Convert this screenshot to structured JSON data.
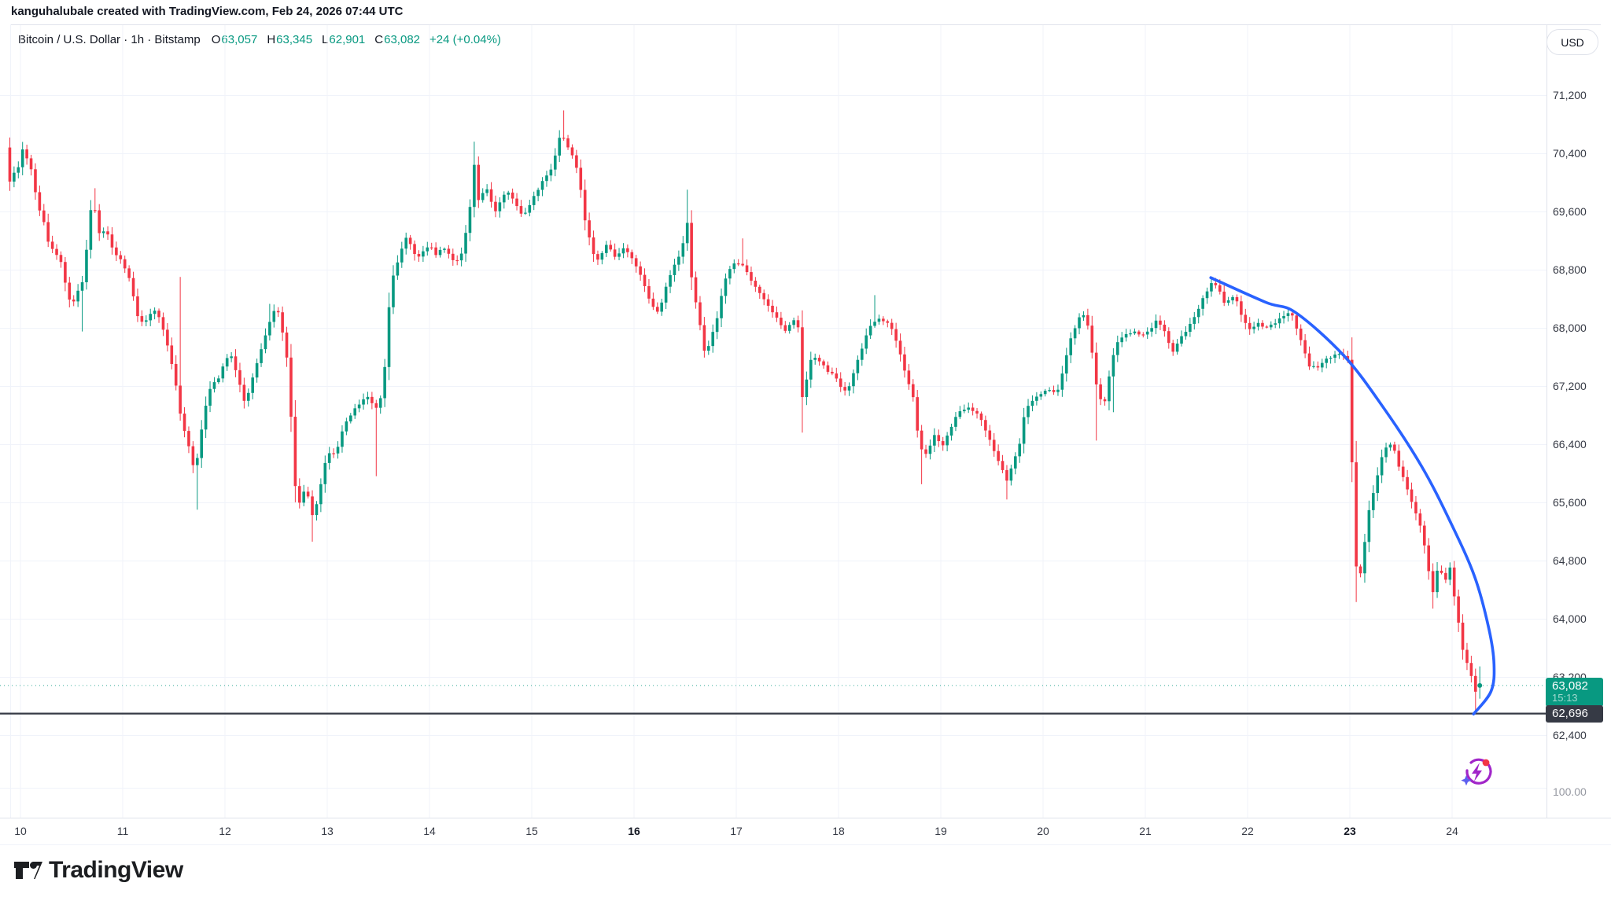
{
  "attribution": {
    "text": "kanguhalubale created with TradingView.com, Feb 24, 2026 07:44 UTC"
  },
  "header": {
    "symbol_title": "Bitcoin / U.S. Dollar · 1h · Bitstamp",
    "ohlc": {
      "open_label": "O",
      "open_value": "63,057",
      "high_label": "H",
      "high_value": "63,345",
      "low_label": "L",
      "low_value": "62,901",
      "close_label": "C",
      "close_value": "63,082",
      "change": "+24 (+0.04%)"
    },
    "currency_button": "USD"
  },
  "price_scale": {
    "current_price_label": "63,082",
    "countdown": "15:13",
    "level_label": "62,696",
    "secondary_label": "100.00"
  },
  "footer": {
    "logo_text": "TradingView"
  },
  "colors": {
    "up": "#089981",
    "down": "#F23645",
    "accent_blue": "#2962FF",
    "level_line": "#363A45",
    "grid": "#F0F3FA",
    "axis_border": "#E0E3EB",
    "text": "#131722",
    "muted": "#9598A1",
    "label_green_bg": "#089981",
    "label_dark_bg": "#363A45"
  },
  "icons": {
    "spark_icon": "lightning-refresh-spark",
    "logo_icon": "tradingview-mark"
  },
  "chart_data": {
    "type": "candlestick",
    "symbol": "Bitcoin / U.S. Dollar",
    "exchange": "Bitstamp",
    "interval": "1h",
    "title": "Bitcoin / U.S. Dollar · 1h · Bitstamp",
    "grid": true,
    "legend_position": "top-left",
    "y_axis_side": "right",
    "y_ticks": [
      {
        "label": "71,200",
        "value": 71200
      },
      {
        "label": "70,400",
        "value": 70400
      },
      {
        "label": "69,600",
        "value": 69600
      },
      {
        "label": "68,800",
        "value": 68800
      },
      {
        "label": "68,000",
        "value": 68000
      },
      {
        "label": "67,200",
        "value": 67200
      },
      {
        "label": "66,400",
        "value": 66400
      },
      {
        "label": "65,600",
        "value": 65600
      },
      {
        "label": "64,800",
        "value": 64800
      },
      {
        "label": "64,000",
        "value": 64000
      },
      {
        "label": "63,200",
        "value": 63200
      },
      {
        "label": "62,400",
        "value": 62400
      }
    ],
    "x_ticks": [
      {
        "label": "10",
        "day": 10,
        "bold": false
      },
      {
        "label": "11",
        "day": 11,
        "bold": false
      },
      {
        "label": "12",
        "day": 12,
        "bold": false
      },
      {
        "label": "13",
        "day": 13,
        "bold": false
      },
      {
        "label": "14",
        "day": 14,
        "bold": false
      },
      {
        "label": "15",
        "day": 15,
        "bold": false
      },
      {
        "label": "16",
        "day": 16,
        "bold": true
      },
      {
        "label": "17",
        "day": 17,
        "bold": false
      },
      {
        "label": "18",
        "day": 18,
        "bold": false
      },
      {
        "label": "19",
        "day": 19,
        "bold": false
      },
      {
        "label": "20",
        "day": 20,
        "bold": false
      },
      {
        "label": "21",
        "day": 21,
        "bold": false
      },
      {
        "label": "22",
        "day": 22,
        "bold": false
      },
      {
        "label": "23",
        "day": 23,
        "bold": true
      },
      {
        "label": "24",
        "day": 24,
        "bold": false
      }
    ],
    "visible_range_days": {
      "start": 9.875,
      "end": 24.3
    },
    "last": {
      "open": 63057,
      "high": 63345,
      "low": 62901,
      "close": 63082,
      "change_points": 24,
      "change_percent": 0.04
    },
    "levels": {
      "current_price": 63082,
      "horizontal_line": 62696
    },
    "curve_annotation": [
      [
        21.64,
        68690
      ],
      [
        22.18,
        68350
      ],
      [
        22.47,
        68210
      ],
      [
        22.94,
        67620
      ],
      [
        23.32,
        66920
      ],
      [
        23.7,
        66100
      ],
      [
        23.98,
        65340
      ],
      [
        24.22,
        64580
      ],
      [
        24.36,
        63860
      ],
      [
        24.41,
        63370
      ],
      [
        24.38,
        63000
      ],
      [
        24.21,
        62690
      ]
    ],
    "waypoints": [
      [
        9.875,
        70480
      ],
      [
        9.917,
        70000
      ],
      [
        9.96,
        70150
      ],
      [
        10.0,
        70200
      ],
      [
        10.04,
        70460
      ],
      [
        10.08,
        70350
      ],
      [
        10.13,
        70150
      ],
      [
        10.17,
        69850
      ],
      [
        10.21,
        69600
      ],
      [
        10.25,
        69450
      ],
      [
        10.29,
        69200
      ],
      [
        10.33,
        69080
      ],
      [
        10.38,
        69000
      ],
      [
        10.42,
        68900
      ],
      [
        10.46,
        68600
      ],
      [
        10.5,
        68400
      ],
      [
        10.54,
        68350
      ],
      [
        10.58,
        68500
      ],
      [
        10.63,
        68650
      ],
      [
        10.67,
        69100
      ],
      [
        10.71,
        69650
      ],
      [
        10.73,
        69880
      ],
      [
        10.77,
        69350
      ],
      [
        10.81,
        69250
      ],
      [
        10.85,
        69400
      ],
      [
        10.9,
        69150
      ],
      [
        10.96,
        69000
      ],
      [
        11.02,
        68900
      ],
      [
        11.08,
        68700
      ],
      [
        11.13,
        68400
      ],
      [
        11.17,
        68150
      ],
      [
        11.22,
        68050
      ],
      [
        11.27,
        68150
      ],
      [
        11.32,
        68250
      ],
      [
        11.38,
        68150
      ],
      [
        11.43,
        67900
      ],
      [
        11.48,
        67650
      ],
      [
        11.53,
        67300
      ],
      [
        11.58,
        66850
      ],
      [
        11.63,
        66550
      ],
      [
        11.68,
        66300
      ],
      [
        11.72,
        66050
      ],
      [
        11.76,
        66250
      ],
      [
        11.8,
        66700
      ],
      [
        11.85,
        67050
      ],
      [
        11.9,
        67250
      ],
      [
        11.96,
        67300
      ],
      [
        12.02,
        67550
      ],
      [
        12.07,
        67650
      ],
      [
        12.12,
        67450
      ],
      [
        12.17,
        67200
      ],
      [
        12.21,
        66980
      ],
      [
        12.26,
        67150
      ],
      [
        12.31,
        67400
      ],
      [
        12.36,
        67650
      ],
      [
        12.42,
        67900
      ],
      [
        12.47,
        68150
      ],
      [
        12.52,
        68280
      ],
      [
        12.56,
        68150
      ],
      [
        12.6,
        67800
      ],
      [
        12.64,
        67450
      ],
      [
        12.67,
        66700
      ],
      [
        12.7,
        65900
      ],
      [
        12.74,
        65550
      ],
      [
        12.78,
        65700
      ],
      [
        12.81,
        65850
      ],
      [
        12.85,
        65550
      ],
      [
        12.88,
        65400
      ],
      [
        12.92,
        65600
      ],
      [
        12.96,
        65850
      ],
      [
        13.0,
        66150
      ],
      [
        13.05,
        66300
      ],
      [
        13.1,
        66250
      ],
      [
        13.15,
        66500
      ],
      [
        13.2,
        66700
      ],
      [
        13.25,
        66800
      ],
      [
        13.3,
        66900
      ],
      [
        13.36,
        67000
      ],
      [
        13.42,
        67050
      ],
      [
        13.47,
        66950
      ],
      [
        13.52,
        66850
      ],
      [
        13.56,
        67200
      ],
      [
        13.6,
        67650
      ],
      [
        13.64,
        68650
      ],
      [
        13.69,
        68800
      ],
      [
        13.74,
        69050
      ],
      [
        13.79,
        69250
      ],
      [
        13.85,
        69100
      ],
      [
        13.9,
        68950
      ],
      [
        13.96,
        69050
      ],
      [
        14.02,
        69150
      ],
      [
        14.08,
        69000
      ],
      [
        14.14,
        69100
      ],
      [
        14.2,
        69050
      ],
      [
        14.26,
        68900
      ],
      [
        14.32,
        68950
      ],
      [
        14.37,
        69250
      ],
      [
        14.42,
        69700
      ],
      [
        14.45,
        70450
      ],
      [
        14.48,
        69700
      ],
      [
        14.52,
        69800
      ],
      [
        14.57,
        69950
      ],
      [
        14.62,
        69750
      ],
      [
        14.67,
        69600
      ],
      [
        14.72,
        69750
      ],
      [
        14.77,
        69900
      ],
      [
        14.82,
        69800
      ],
      [
        14.87,
        69700
      ],
      [
        14.92,
        69550
      ],
      [
        14.97,
        69600
      ],
      [
        15.02,
        69750
      ],
      [
        15.08,
        69900
      ],
      [
        15.14,
        70050
      ],
      [
        15.2,
        70150
      ],
      [
        15.26,
        70400
      ],
      [
        15.31,
        70750
      ],
      [
        15.35,
        70500
      ],
      [
        15.4,
        70450
      ],
      [
        15.45,
        70250
      ],
      [
        15.5,
        69900
      ],
      [
        15.55,
        69400
      ],
      [
        15.6,
        69150
      ],
      [
        15.65,
        68900
      ],
      [
        15.7,
        69000
      ],
      [
        15.75,
        69150
      ],
      [
        15.8,
        69050
      ],
      [
        15.85,
        68950
      ],
      [
        15.9,
        69100
      ],
      [
        15.96,
        69050
      ],
      [
        16.02,
        68900
      ],
      [
        16.08,
        68750
      ],
      [
        16.14,
        68500
      ],
      [
        16.2,
        68300
      ],
      [
        16.26,
        68200
      ],
      [
        16.32,
        68500
      ],
      [
        16.38,
        68750
      ],
      [
        16.44,
        68950
      ],
      [
        16.49,
        69000
      ],
      [
        16.53,
        69700
      ],
      [
        16.57,
        68800
      ],
      [
        16.62,
        68400
      ],
      [
        16.67,
        68000
      ],
      [
        16.72,
        67600
      ],
      [
        16.77,
        67850
      ],
      [
        16.82,
        68050
      ],
      [
        16.87,
        68400
      ],
      [
        16.92,
        68700
      ],
      [
        16.97,
        68850
      ],
      [
        17.03,
        68900
      ],
      [
        17.09,
        68850
      ],
      [
        17.15,
        68700
      ],
      [
        17.21,
        68550
      ],
      [
        17.27,
        68450
      ],
      [
        17.33,
        68300
      ],
      [
        17.39,
        68200
      ],
      [
        17.45,
        68050
      ],
      [
        17.51,
        67950
      ],
      [
        17.57,
        68100
      ],
      [
        17.62,
        68150
      ],
      [
        17.66,
        67000
      ],
      [
        17.7,
        67250
      ],
      [
        17.75,
        67550
      ],
      [
        17.8,
        67600
      ],
      [
        17.86,
        67500
      ],
      [
        17.92,
        67400
      ],
      [
        17.98,
        67350
      ],
      [
        18.04,
        67200
      ],
      [
        18.1,
        67100
      ],
      [
        18.16,
        67350
      ],
      [
        18.22,
        67600
      ],
      [
        18.28,
        67850
      ],
      [
        18.34,
        68050
      ],
      [
        18.4,
        68120
      ],
      [
        18.46,
        68100
      ],
      [
        18.52,
        68050
      ],
      [
        18.58,
        67850
      ],
      [
        18.64,
        67550
      ],
      [
        18.7,
        67250
      ],
      [
        18.74,
        67150
      ],
      [
        18.78,
        66700
      ],
      [
        18.82,
        66350
      ],
      [
        18.87,
        66250
      ],
      [
        18.92,
        66400
      ],
      [
        18.97,
        66550
      ],
      [
        19.03,
        66350
      ],
      [
        19.08,
        66500
      ],
      [
        19.14,
        66700
      ],
      [
        19.2,
        66850
      ],
      [
        19.28,
        66900
      ],
      [
        19.36,
        66850
      ],
      [
        19.43,
        66700
      ],
      [
        19.5,
        66450
      ],
      [
        19.56,
        66250
      ],
      [
        19.62,
        66050
      ],
      [
        19.67,
        65900
      ],
      [
        19.73,
        66150
      ],
      [
        19.79,
        66400
      ],
      [
        19.85,
        66900
      ],
      [
        19.92,
        67000
      ],
      [
        20.0,
        67100
      ],
      [
        20.08,
        67150
      ],
      [
        20.16,
        67100
      ],
      [
        20.22,
        67450
      ],
      [
        20.3,
        67900
      ],
      [
        20.38,
        68150
      ],
      [
        20.44,
        68200
      ],
      [
        20.5,
        67650
      ],
      [
        20.56,
        67050
      ],
      [
        20.62,
        66950
      ],
      [
        20.68,
        67450
      ],
      [
        20.74,
        67800
      ],
      [
        20.82,
        67900
      ],
      [
        20.9,
        67950
      ],
      [
        20.98,
        67900
      ],
      [
        21.06,
        67950
      ],
      [
        21.12,
        68100
      ],
      [
        21.2,
        68000
      ],
      [
        21.28,
        67650
      ],
      [
        21.36,
        67850
      ],
      [
        21.44,
        68000
      ],
      [
        21.52,
        68200
      ],
      [
        21.6,
        68450
      ],
      [
        21.67,
        68620
      ],
      [
        21.74,
        68550
      ],
      [
        21.8,
        68300
      ],
      [
        21.86,
        68450
      ],
      [
        21.92,
        68350
      ],
      [
        21.98,
        68100
      ],
      [
        22.04,
        67980
      ],
      [
        22.12,
        68060
      ],
      [
        22.2,
        68000
      ],
      [
        22.28,
        68060
      ],
      [
        22.36,
        68150
      ],
      [
        22.44,
        68230
      ],
      [
        22.5,
        68000
      ],
      [
        22.56,
        67750
      ],
      [
        22.62,
        67480
      ],
      [
        22.7,
        67450
      ],
      [
        22.78,
        67560
      ],
      [
        22.86,
        67620
      ],
      [
        22.94,
        67650
      ],
      [
        23.0,
        67550
      ],
      [
        23.03,
        66700
      ],
      [
        23.07,
        64850
      ],
      [
        23.11,
        64450
      ],
      [
        23.15,
        64900
      ],
      [
        23.21,
        65500
      ],
      [
        23.27,
        65850
      ],
      [
        23.33,
        66200
      ],
      [
        23.39,
        66420
      ],
      [
        23.45,
        66350
      ],
      [
        23.51,
        66050
      ],
      [
        23.58,
        65800
      ],
      [
        23.65,
        65500
      ],
      [
        23.72,
        65250
      ],
      [
        23.78,
        64750
      ],
      [
        23.83,
        64350
      ],
      [
        23.89,
        64750
      ],
      [
        23.95,
        64500
      ],
      [
        24.0,
        64700
      ],
      [
        24.06,
        64150
      ],
      [
        24.12,
        63600
      ],
      [
        24.17,
        63380
      ],
      [
        24.22,
        63150
      ],
      [
        24.26,
        62960
      ],
      [
        24.2917,
        63082
      ]
    ],
    "wick_events": [
      [
        9.9,
        70590,
        "high"
      ],
      [
        10.62,
        67950,
        "low"
      ],
      [
        10.73,
        69920,
        "high"
      ],
      [
        11.58,
        68700,
        "high"
      ],
      [
        11.73,
        65500,
        "low"
      ],
      [
        12.47,
        68330,
        "high"
      ],
      [
        12.88,
        65060,
        "low"
      ],
      [
        13.52,
        65960,
        "low"
      ],
      [
        14.45,
        70560,
        "high"
      ],
      [
        15.33,
        70990,
        "high"
      ],
      [
        16.53,
        69900,
        "high"
      ],
      [
        17.1,
        69230,
        "high"
      ],
      [
        17.66,
        66560,
        "low"
      ],
      [
        18.36,
        68450,
        "high"
      ],
      [
        18.82,
        65850,
        "low"
      ],
      [
        19.66,
        65640,
        "low"
      ],
      [
        20.56,
        66450,
        "low"
      ],
      [
        20.72,
        66840,
        "low"
      ],
      [
        21.67,
        68700,
        "high"
      ],
      [
        23.09,
        64230,
        "low"
      ],
      [
        23.83,
        64140,
        "low"
      ],
      [
        24.25,
        62696,
        "low"
      ]
    ]
  }
}
